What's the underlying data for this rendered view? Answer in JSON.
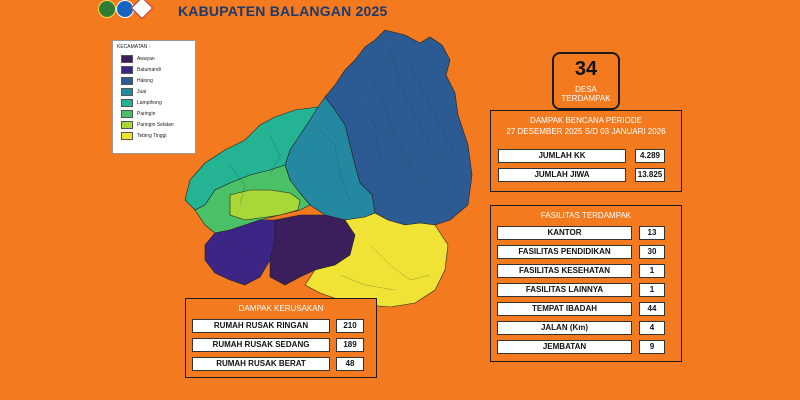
{
  "header": {
    "title": "KABUPATEN BALANGAN 2025"
  },
  "legend": {
    "title": "KECAMATAN :",
    "items": [
      {
        "label": "Awayan",
        "color": "#3b1f5c"
      },
      {
        "label": "Batumandi",
        "color": "#3c2585"
      },
      {
        "label": "Halong",
        "color": "#2b5b92"
      },
      {
        "label": "Juai",
        "color": "#2488a0"
      },
      {
        "label": "Lampihong",
        "color": "#24b393"
      },
      {
        "label": "Paringin",
        "color": "#4bc167"
      },
      {
        "label": "Paringin Selatan",
        "color": "#a7d838"
      },
      {
        "label": "Tebing Tinggi",
        "color": "#f1e336"
      }
    ]
  },
  "desa": {
    "count": "34",
    "label_line1": "DESA",
    "label_line2": "TERDAMPAK"
  },
  "dampak_bencana": {
    "title_line1": "DAMPAK BENCANA PERIODE",
    "title_line2": "27 DESEMBER 2025 S/D 03 JANUARI 2026",
    "rows": [
      {
        "label": "JUMLAH KK",
        "value": "4.289"
      },
      {
        "label": "JUMLAH JIWA",
        "value": "13.825"
      }
    ]
  },
  "fasilitas": {
    "title": "FASILITAS TERDAMPAK",
    "rows": [
      {
        "label": "KANTOR",
        "value": "13"
      },
      {
        "label": "FASILITAS PENDIDIKAN",
        "value": "30"
      },
      {
        "label": "FASILITAS KESEHATAN",
        "value": "1"
      },
      {
        "label": "FASILITAS LAINNYA",
        "value": "1"
      },
      {
        "label": "TEMPAT IBADAH",
        "value": "44"
      },
      {
        "label": "JALAN (Km)",
        "value": "4"
      },
      {
        "label": "JEMBATAN",
        "value": "9"
      }
    ]
  },
  "kerusakan": {
    "title": "DAMPAK KERUSAKAN",
    "rows": [
      {
        "label": "RUMAH RUSAK RINGAN",
        "value": "210"
      },
      {
        "label": "RUMAH RUSAK SEDANG",
        "value": "189"
      },
      {
        "label": "RUMAH RUSAK BERAT",
        "value": "48"
      }
    ]
  }
}
